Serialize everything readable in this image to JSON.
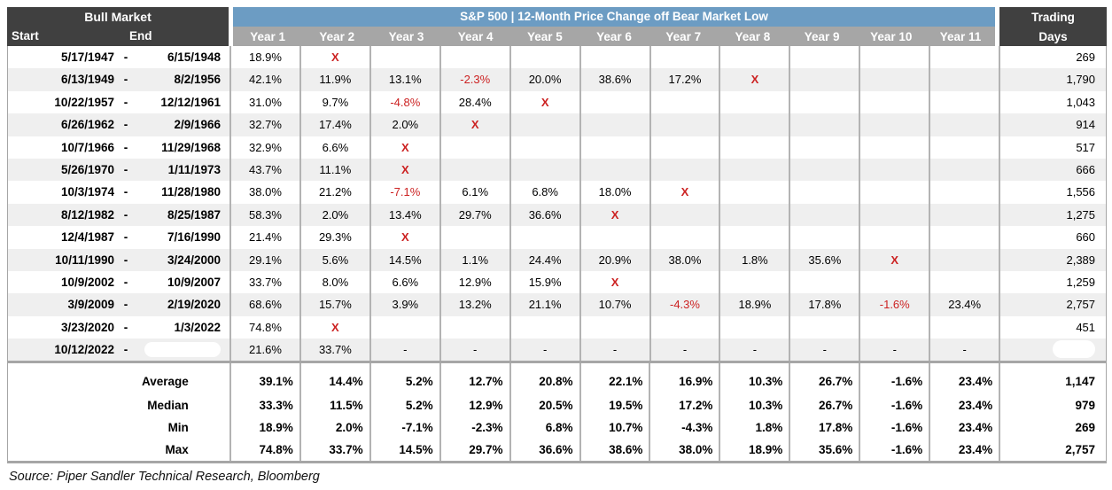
{
  "chart_data": {
    "type": "table",
    "title": "S&P 500 | 12-Month Price Change off Bear Market Low",
    "group_header": "Bull Market",
    "start_label": "Start",
    "end_label": "End",
    "trading_label": "Trading",
    "days_label": "Days",
    "year_labels": [
      "Year 1",
      "Year 2",
      "Year 3",
      "Year 4",
      "Year 5",
      "Year 6",
      "Year 7",
      "Year 8",
      "Year 9",
      "Year 10",
      "Year 11"
    ],
    "rows": [
      {
        "start": "5/17/1947",
        "end": "6/15/1948",
        "values": [
          "18.9%",
          "X",
          "",
          "",
          "",
          "",
          "",
          "",
          "",
          "",
          ""
        ],
        "trading_days": "269"
      },
      {
        "start": "6/13/1949",
        "end": "8/2/1956",
        "values": [
          "42.1%",
          "11.9%",
          "13.1%",
          "-2.3%",
          "20.0%",
          "38.6%",
          "17.2%",
          "X",
          "",
          "",
          ""
        ],
        "trading_days": "1,790"
      },
      {
        "start": "10/22/1957",
        "end": "12/12/1961",
        "values": [
          "31.0%",
          "9.7%",
          "-4.8%",
          "28.4%",
          "X",
          "",
          "",
          "",
          "",
          "",
          ""
        ],
        "trading_days": "1,043"
      },
      {
        "start": "6/26/1962",
        "end": "2/9/1966",
        "values": [
          "32.7%",
          "17.4%",
          "2.0%",
          "X",
          "",
          "",
          "",
          "",
          "",
          "",
          ""
        ],
        "trading_days": "914"
      },
      {
        "start": "10/7/1966",
        "end": "11/29/1968",
        "values": [
          "32.9%",
          "6.6%",
          "X",
          "",
          "",
          "",
          "",
          "",
          "",
          "",
          ""
        ],
        "trading_days": "517"
      },
      {
        "start": "5/26/1970",
        "end": "1/11/1973",
        "values": [
          "43.7%",
          "11.1%",
          "X",
          "",
          "",
          "",
          "",
          "",
          "",
          "",
          ""
        ],
        "trading_days": "666"
      },
      {
        "start": "10/3/1974",
        "end": "11/28/1980",
        "values": [
          "38.0%",
          "21.2%",
          "-7.1%",
          "6.1%",
          "6.8%",
          "18.0%",
          "X",
          "",
          "",
          "",
          ""
        ],
        "trading_days": "1,556"
      },
      {
        "start": "8/12/1982",
        "end": "8/25/1987",
        "values": [
          "58.3%",
          "2.0%",
          "13.4%",
          "29.7%",
          "36.6%",
          "X",
          "",
          "",
          "",
          "",
          ""
        ],
        "trading_days": "1,275"
      },
      {
        "start": "12/4/1987",
        "end": "7/16/1990",
        "values": [
          "21.4%",
          "29.3%",
          "X",
          "",
          "",
          "",
          "",
          "",
          "",
          "",
          ""
        ],
        "trading_days": "660"
      },
      {
        "start": "10/11/1990",
        "end": "3/24/2000",
        "values": [
          "29.1%",
          "5.6%",
          "14.5%",
          "1.1%",
          "24.4%",
          "20.9%",
          "38.0%",
          "1.8%",
          "35.6%",
          "X",
          ""
        ],
        "trading_days": "2,389"
      },
      {
        "start": "10/9/2002",
        "end": "10/9/2007",
        "values": [
          "33.7%",
          "8.0%",
          "6.6%",
          "12.9%",
          "15.9%",
          "X",
          "",
          "",
          "",
          "",
          ""
        ],
        "trading_days": "1,259"
      },
      {
        "start": "3/9/2009",
        "end": "2/19/2020",
        "values": [
          "68.6%",
          "15.7%",
          "3.9%",
          "13.2%",
          "21.1%",
          "10.7%",
          "-4.3%",
          "18.9%",
          "17.8%",
          "-1.6%",
          "23.4%"
        ],
        "trading_days": "2,757"
      },
      {
        "start": "3/23/2020",
        "end": "1/3/2022",
        "values": [
          "74.8%",
          "X",
          "",
          "",
          "",
          "",
          "",
          "",
          "",
          "",
          ""
        ],
        "trading_days": "451"
      },
      {
        "start": "10/12/2022",
        "end": "",
        "values": [
          "21.6%",
          "33.7%",
          "-",
          "-",
          "-",
          "-",
          "-",
          "-",
          "-",
          "-",
          "-"
        ],
        "trading_days": ""
      }
    ],
    "summary": [
      {
        "label": "Average",
        "values": [
          "39.1%",
          "14.4%",
          "5.2%",
          "12.7%",
          "20.8%",
          "22.1%",
          "16.9%",
          "10.3%",
          "26.7%",
          "-1.6%",
          "23.4%"
        ],
        "trading_days": "1,147"
      },
      {
        "label": "Median",
        "values": [
          "33.3%",
          "11.5%",
          "5.2%",
          "12.9%",
          "20.5%",
          "19.5%",
          "17.2%",
          "10.3%",
          "26.7%",
          "-1.6%",
          "23.4%"
        ],
        "trading_days": "979"
      },
      {
        "label": "Min",
        "values": [
          "18.9%",
          "2.0%",
          "-7.1%",
          "-2.3%",
          "6.8%",
          "10.7%",
          "-4.3%",
          "1.8%",
          "17.8%",
          "-1.6%",
          "23.4%"
        ],
        "trading_days": "269"
      },
      {
        "label": "Max",
        "values": [
          "74.8%",
          "33.7%",
          "14.5%",
          "29.7%",
          "36.6%",
          "38.6%",
          "38.0%",
          "18.9%",
          "35.6%",
          "-1.6%",
          "23.4%"
        ],
        "trading_days": "2,757"
      }
    ]
  },
  "source": "Source: Piper Sandler Technical Research, Bloomberg",
  "colors": {
    "dark_header_bg": "#404040",
    "blue_header_bg": "#6C9CC3",
    "gray_header_bg": "#A6A6A6",
    "row_stripe": "#EFEFEF",
    "negative_red": "#CC2222",
    "grid_border": "#B3B3B3"
  }
}
